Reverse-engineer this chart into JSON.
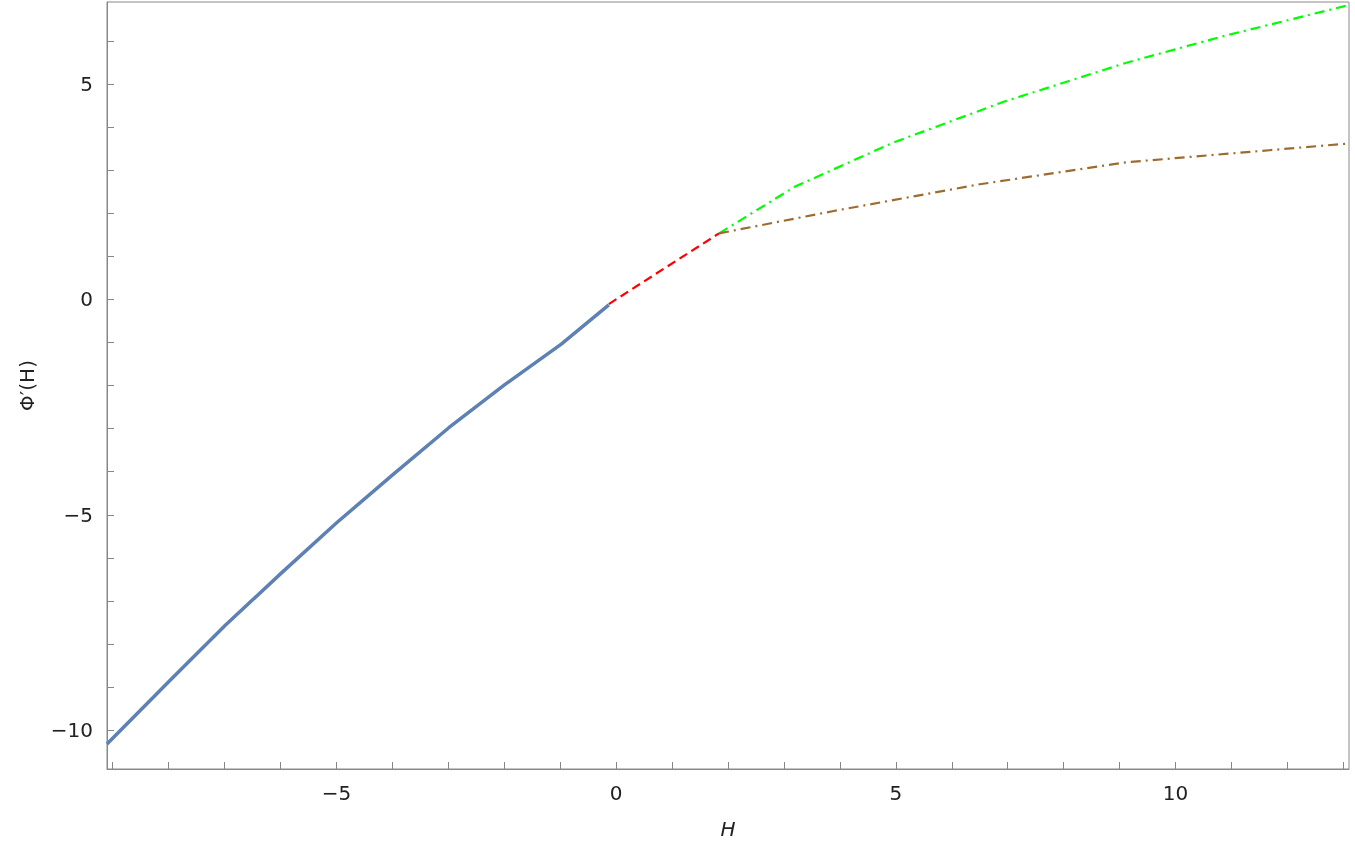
{
  "chart_data": {
    "type": "line",
    "xlabel": "H",
    "ylabel": "Φ′(H)",
    "xlim": [
      -9.1,
      13.1
    ],
    "ylim": [
      -10.9,
      6.9
    ],
    "xticks": [
      {
        "value": -9,
        "label": null
      },
      {
        "value": -8,
        "label": null
      },
      {
        "value": -7,
        "label": null
      },
      {
        "value": -6,
        "label": null
      },
      {
        "value": -5,
        "label": "−5"
      },
      {
        "value": -4,
        "label": null
      },
      {
        "value": -3,
        "label": null
      },
      {
        "value": -2,
        "label": null
      },
      {
        "value": -1,
        "label": null
      },
      0,
      {
        "value": 1,
        "label": null
      },
      {
        "value": 2,
        "label": null
      },
      {
        "value": 3,
        "label": null
      },
      {
        "value": 4,
        "label": null
      },
      5,
      {
        "value": 6,
        "label": null
      },
      {
        "value": 7,
        "label": null
      },
      {
        "value": 8,
        "label": null
      },
      {
        "value": 9,
        "label": null
      },
      10,
      {
        "value": 11,
        "label": null
      },
      {
        "value": 12,
        "label": null
      },
      {
        "value": 13,
        "label": null
      }
    ],
    "yticks": [
      {
        "value": -10,
        "label": "−10"
      },
      {
        "value": -9,
        "label": null
      },
      {
        "value": -8,
        "label": null
      },
      {
        "value": -7,
        "label": null
      },
      {
        "value": -6,
        "label": null
      },
      {
        "value": -5,
        "label": "−5"
      },
      {
        "value": -4,
        "label": null
      },
      {
        "value": -3,
        "label": null
      },
      {
        "value": -2,
        "label": null
      },
      {
        "value": -1,
        "label": null
      },
      0,
      {
        "value": 1,
        "label": null
      },
      {
        "value": 2,
        "label": null
      },
      {
        "value": 3,
        "label": null
      },
      {
        "value": 4,
        "label": null
      },
      5,
      {
        "value": 6,
        "label": null
      }
    ],
    "grid": false,
    "marker": "none",
    "series": [
      {
        "color": "#5e81b5",
        "line_style": "solid",
        "x": [
          -9.1,
          -7.98,
          -6.99,
          -5.99,
          -4.99,
          -3.99,
          -2.99,
          -1.99,
          -0.98,
          -0.13
        ],
        "values": [
          -10.32,
          -8.85,
          -7.57,
          -6.36,
          -5.18,
          -4.07,
          -2.98,
          -1.98,
          -1.04,
          -0.13
        ]
      },
      {
        "color": "#ff0000",
        "line_style": "dashed",
        "x": [
          -0.13,
          0.84,
          1.84
        ],
        "values": [
          -0.11,
          0.7,
          1.53
        ]
      },
      {
        "color": "#00ff00",
        "line_style": "dashdot",
        "x": [
          1.84,
          3.19,
          4.94,
          6.94,
          9.12,
          10.86,
          13.04
        ],
        "values": [
          1.53,
          2.61,
          3.63,
          4.59,
          5.49,
          6.11,
          6.81
        ]
      },
      {
        "color": "#9e6b2f",
        "line_style": "dashdot",
        "x": [
          1.84,
          3.89,
          6.5,
          9.12,
          13.04
        ],
        "values": [
          1.53,
          2.05,
          2.67,
          3.18,
          3.61
        ]
      }
    ]
  }
}
